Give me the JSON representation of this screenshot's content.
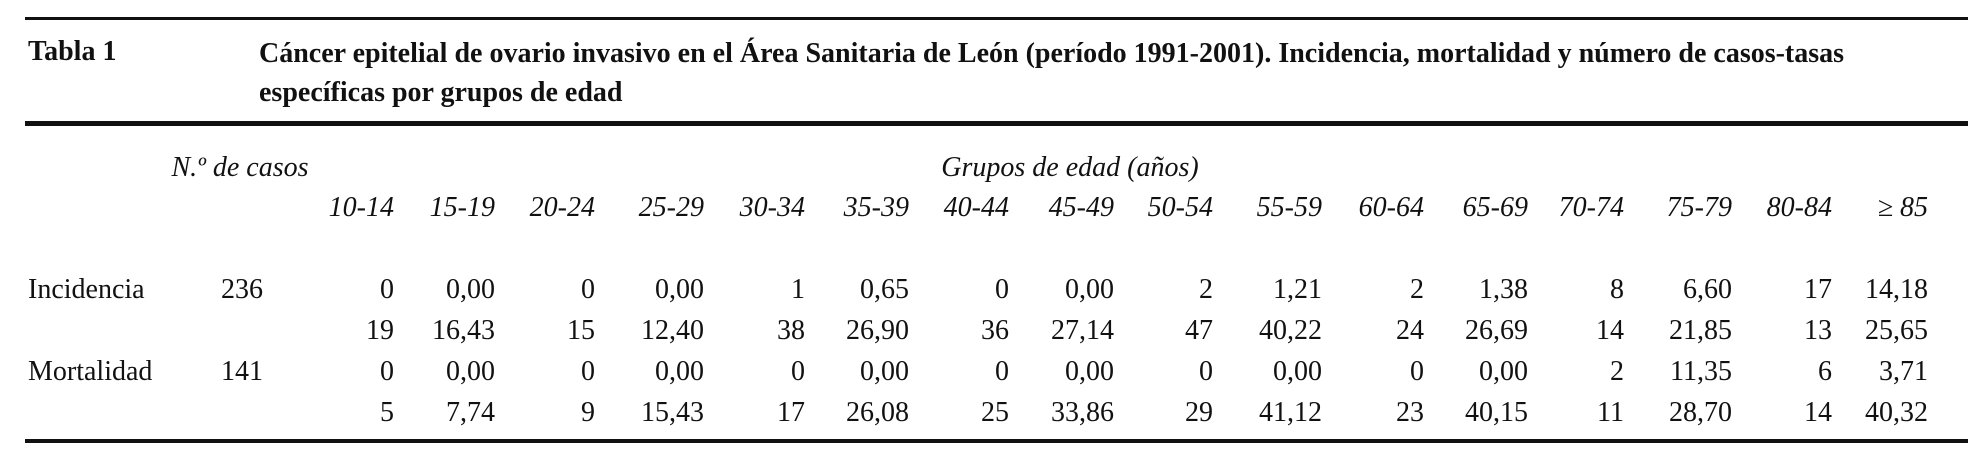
{
  "header": {
    "label": "Tabla 1",
    "caption": "Cáncer epitelial de ovario invasivo en el Área Sanitaria de León (período 1991-2001). Incidencia, mortalidad y número de casos-tasas específicas por grupos de edad"
  },
  "table": {
    "count_header": "N.º de casos",
    "group_header": "Grupos de edad (años)",
    "age_groups": [
      "10-14",
      "15-19",
      "20-24",
      "25-29",
      "30-34",
      "35-39",
      "40-44",
      "45-49",
      "50-54",
      "55-59",
      "60-64",
      "65-69",
      "70-74",
      "75-79",
      "80-84",
      "≥ 85"
    ],
    "rows": [
      {
        "label": "Incidencia",
        "total": 236,
        "values": [
          "0",
          "0,00",
          "0",
          "0,00",
          "1",
          "0,65",
          "0",
          "0,00",
          "2",
          "1,21",
          "2",
          "1,38",
          "8",
          "6,60",
          "17",
          "14,18"
        ]
      },
      {
        "values": [
          "19",
          "16,43",
          "15",
          "12,40",
          "38",
          "26,90",
          "36",
          "27,14",
          "47",
          "40,22",
          "24",
          "26,69",
          "14",
          "21,85",
          "13",
          "25,65"
        ]
      },
      {
        "label": "Mortalidad",
        "total": 141,
        "values": [
          "0",
          "0,00",
          "0",
          "0,00",
          "0",
          "0,00",
          "0",
          "0,00",
          "0",
          "0,00",
          "0",
          "0,00",
          "2",
          "11,35",
          "6",
          "3,71"
        ]
      },
      {
        "values": [
          "5",
          "7,74",
          "9",
          "15,43",
          "17",
          "26,08",
          "25",
          "33,86",
          "29",
          "41,12",
          "23",
          "40,15",
          "11",
          "28,70",
          "14",
          "40,32"
        ]
      }
    ]
  }
}
